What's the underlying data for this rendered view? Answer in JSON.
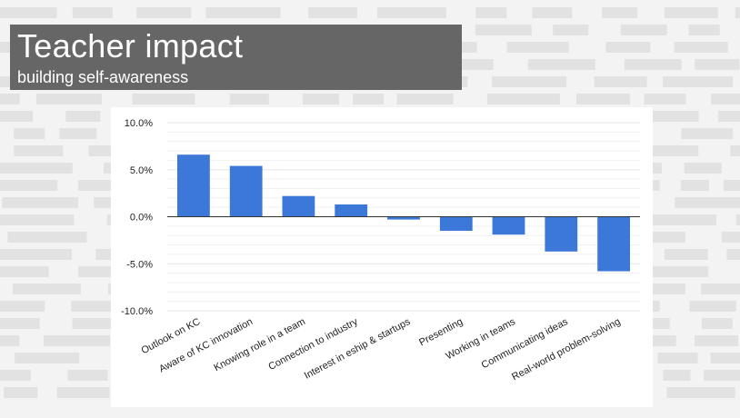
{
  "slide": {
    "title": "Teacher impact",
    "subtitle": "building self-awareness"
  },
  "colors": {
    "bar": "#3c78d8",
    "title_bg": "#666666",
    "background": "#f3f3f3",
    "pattern": "#e2e2e2",
    "gridline": "#e6e6e6",
    "zero_line": "#333333",
    "tick_text": "#222222"
  },
  "chart_data": {
    "type": "bar",
    "title": "",
    "xlabel": "",
    "ylabel": "",
    "ylim": [
      -10,
      10
    ],
    "y_major_ticks": [
      10,
      5,
      0,
      -5,
      -10
    ],
    "y_tick_labels": [
      "10.0%",
      "5.0%",
      "0.0%",
      "-5.0%",
      "-10.0%"
    ],
    "minor_gridlines": true,
    "legend": "none",
    "categories": [
      "Outlook on KC",
      "Aware of KC innovation",
      "Knowing role in a team",
      "Connection to industry",
      "Interest in eship & startups",
      "Presenting",
      "Working in teams",
      "Communicating ideas",
      "Real-world problem-solving"
    ],
    "values": [
      6.6,
      5.4,
      2.2,
      1.3,
      -0.3,
      -1.5,
      -1.9,
      -3.7,
      -5.8
    ]
  }
}
